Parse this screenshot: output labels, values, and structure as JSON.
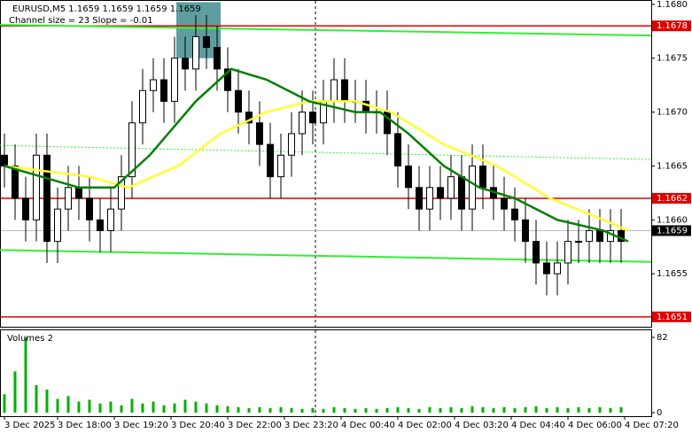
{
  "chart_data": {
    "type": "candlestick",
    "title": "EURUSD,M5  1.1659 1.1659 1.1659 1.1659",
    "subtitle": "Channel size = 23 Slope = -0.01",
    "x": [
      0,
      3,
      6,
      9,
      12,
      15,
      18,
      21,
      24,
      27,
      30,
      33,
      36,
      39,
      42,
      45,
      48,
      51,
      54,
      57,
      60,
      63,
      66,
      69,
      72,
      75,
      78,
      81,
      84,
      87,
      90,
      93,
      96,
      99,
      102,
      105,
      108,
      111,
      114,
      117,
      120,
      123,
      126,
      129,
      132,
      135,
      138,
      141,
      144,
      147,
      150,
      153,
      156,
      159,
      162,
      165,
      168,
      171,
      174
    ],
    "open": [
      1.1666,
      1.1665,
      1.1662,
      1.166,
      1.1666,
      1.1658,
      1.1661,
      1.1663,
      1.1662,
      1.166,
      1.1659,
      1.1661,
      1.1664,
      1.1669,
      1.1672,
      1.1673,
      1.1671,
      1.1675,
      1.1674,
      1.1677,
      1.1676,
      1.1674,
      1.1672,
      1.167,
      1.1669,
      1.1667,
      1.1664,
      1.1666,
      1.1668,
      1.167,
      1.1669,
      1.1671,
      1.1673,
      1.1671,
      1.1671,
      1.167,
      1.167,
      1.1668,
      1.1665,
      1.1663,
      1.1661,
      1.1663,
      1.1662,
      1.1664,
      1.1661,
      1.1665,
      1.1663,
      1.1662,
      1.1661,
      1.166,
      1.1658,
      1.1656,
      1.1655,
      1.1656,
      1.1658,
      1.1658,
      1.1659,
      1.1658,
      1.1659
    ],
    "high": [
      1.1668,
      1.1667,
      1.1664,
      1.1668,
      1.1668,
      1.1663,
      1.1665,
      1.1665,
      1.1664,
      1.1662,
      1.1663,
      1.1666,
      1.1671,
      1.1674,
      1.1675,
      1.1675,
      1.1677,
      1.1677,
      1.1679,
      1.1679,
      1.1678,
      1.1676,
      1.1674,
      1.1672,
      1.1671,
      1.1669,
      1.1668,
      1.167,
      1.1672,
      1.1672,
      1.1673,
      1.1675,
      1.1675,
      1.1673,
      1.1673,
      1.1672,
      1.1672,
      1.167,
      1.1667,
      1.1665,
      1.1665,
      1.1665,
      1.1666,
      1.1666,
      1.1667,
      1.1667,
      1.1665,
      1.1664,
      1.1663,
      1.1662,
      1.166,
      1.1658,
      1.1658,
      1.166,
      1.166,
      1.1661,
      1.1661,
      1.1661,
      1.1661
    ],
    "low": [
      1.1663,
      1.166,
      1.1658,
      1.1658,
      1.1656,
      1.1656,
      1.1659,
      1.166,
      1.1658,
      1.1657,
      1.1657,
      1.1659,
      1.1662,
      1.1667,
      1.167,
      1.1669,
      1.1669,
      1.1672,
      1.1672,
      1.1674,
      1.1672,
      1.167,
      1.1668,
      1.1667,
      1.1665,
      1.1662,
      1.1662,
      1.1664,
      1.1666,
      1.1667,
      1.1667,
      1.1669,
      1.1669,
      1.1669,
      1.1668,
      1.1668,
      1.1666,
      1.1663,
      1.1661,
      1.1659,
      1.1659,
      1.166,
      1.166,
      1.1659,
      1.1659,
      1.1661,
      1.166,
      1.1659,
      1.1658,
      1.1656,
      1.1654,
      1.1653,
      1.1653,
      1.1654,
      1.1656,
      1.1656,
      1.1656,
      1.1656,
      1.1656
    ],
    "close": [
      1.1665,
      1.1662,
      1.166,
      1.1666,
      1.1658,
      1.1661,
      1.1663,
      1.1662,
      1.166,
      1.1659,
      1.1661,
      1.1664,
      1.1669,
      1.1672,
      1.1673,
      1.1671,
      1.1675,
      1.1674,
      1.1677,
      1.1676,
      1.1674,
      1.1672,
      1.167,
      1.1669,
      1.1667,
      1.1664,
      1.1666,
      1.1668,
      1.167,
      1.1669,
      1.1671,
      1.1673,
      1.1671,
      1.1671,
      1.167,
      1.167,
      1.1668,
      1.1665,
      1.1663,
      1.1661,
      1.1663,
      1.1662,
      1.1664,
      1.1661,
      1.1665,
      1.1663,
      1.1662,
      1.1661,
      1.166,
      1.1658,
      1.1656,
      1.1655,
      1.1656,
      1.1658,
      1.1658,
      1.1659,
      1.1658,
      1.1659,
      1.1658
    ],
    "xlim": [
      -1.25,
      182.5
    ],
    "ylim": [
      1.165,
      1.16804
    ],
    "yticks": [
      {
        "value": 1.168,
        "label": "1.1680"
      },
      1.1675,
      {
        "value": 1.167,
        "label": "1.1670"
      },
      1.1665,
      {
        "value": 1.166,
        "label": "1.1660"
      },
      1.1655
    ],
    "xticks": [
      {
        "value": 0,
        "label": "3 Dec 2025"
      },
      {
        "value": 15,
        "label": "3 Dec 18:00"
      },
      {
        "value": 31,
        "label": "3 Dec 19:20"
      },
      {
        "value": 47,
        "label": "3 Dec 20:40"
      },
      {
        "value": 63,
        "label": "3 Dec 22:00"
      },
      {
        "value": 79,
        "label": "3 Dec 23:20"
      },
      {
        "value": 95,
        "label": "4 Dec 00:40"
      },
      {
        "value": 111,
        "label": "4 Dec 02:00"
      },
      {
        "value": 127,
        "label": "4 Dec 03:20"
      },
      {
        "value": 143,
        "label": "4 Dec 04:40"
      },
      {
        "value": 159,
        "label": "4 Dec 06:00"
      },
      {
        "value": 175,
        "label": "4 Dec 07:20"
      }
    ],
    "moving_averages": [
      {
        "color": "#ffff33",
        "x": [
          0,
          24,
          35,
          49,
          61,
          74,
          86,
          99,
          109,
          124,
          139,
          154,
          169,
          176
        ],
        "values": [
          1.1665,
          1.1664,
          1.1663,
          1.1665,
          1.1668,
          1.167,
          1.1671,
          1.1671,
          1.167,
          1.1667,
          1.1665,
          1.1662,
          1.166,
          1.1659
        ]
      },
      {
        "color": "#008000",
        "x": [
          0,
          21,
          31,
          41,
          54,
          64,
          74,
          86,
          99,
          106,
          114,
          124,
          134,
          144,
          156,
          169,
          176
        ],
        "values": [
          1.1665,
          1.1663,
          1.1663,
          1.1666,
          1.1671,
          1.1674,
          1.1673,
          1.1671,
          1.167,
          1.167,
          1.1668,
          1.1665,
          1.1663,
          1.1662,
          1.166,
          1.1659,
          1.1658
        ]
      }
    ],
    "channel": [
      {
        "color": "#33ee33",
        "dash": false,
        "x": [
          -1.25,
          182.5
        ],
        "values": [
          1.16781,
          1.16771
        ]
      },
      {
        "color": "#33ee33",
        "dash": true,
        "x": [
          -1.25,
          182.5
        ],
        "values": [
          1.16669,
          1.16656
        ]
      },
      {
        "color": "#33ee33",
        "dash": false,
        "x": [
          -1.25,
          182.5
        ],
        "values": [
          1.16572,
          1.16561
        ]
      }
    ],
    "levels": [
      {
        "value": 1.1678,
        "color": "#e00000"
      },
      {
        "value": 1.1662,
        "color": "#e00000"
      },
      {
        "value": 1.1659,
        "color": "#000000"
      },
      {
        "value": 1.1651,
        "color": "#e00000"
      }
    ],
    "highlight": {
      "color": "#5f9ea0",
      "x": [
        48.5,
        61
      ],
      "y": [
        1.1675,
        1.16802
      ]
    },
    "vline": 87.75,
    "volume": {
      "title": "Volumes 2",
      "color": "#00b000",
      "ylim": [
        0,
        82
      ],
      "yticks": [
        82,
        0
      ],
      "values": [
        20,
        45,
        82,
        30,
        25,
        15,
        18,
        12,
        14,
        10,
        12,
        8,
        15,
        10,
        12,
        8,
        10,
        14,
        12,
        10,
        8,
        7,
        6,
        5,
        6,
        5,
        6,
        5,
        4,
        5,
        4,
        6,
        5,
        4,
        5,
        4,
        5,
        6,
        5,
        4,
        6,
        5,
        6,
        5,
        7,
        6,
        5,
        6,
        5,
        6,
        7,
        5,
        6,
        5,
        6,
        5,
        6,
        5,
        6
      ]
    }
  }
}
